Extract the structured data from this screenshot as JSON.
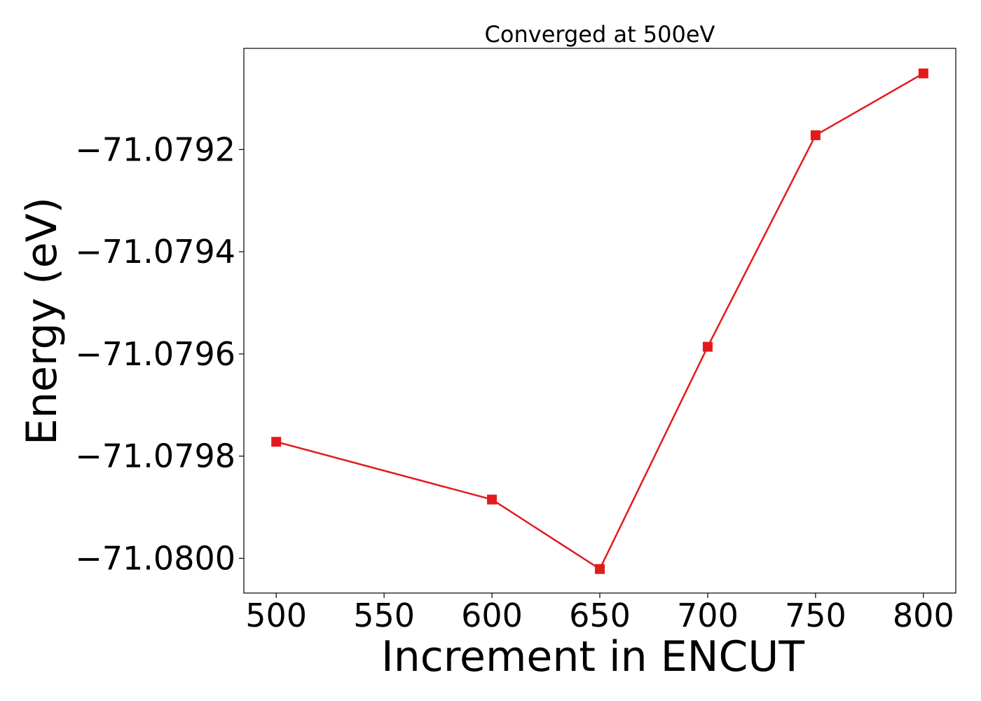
{
  "chart_data": {
    "type": "line",
    "title": "Converged at 500eV",
    "xlabel": "Increment in ENCUT",
    "ylabel": "Energy (eV)",
    "x": [
      500,
      600,
      650,
      700,
      750,
      800
    ],
    "series": [
      {
        "values": [
          -71.079772,
          -71.079885,
          -71.080021,
          -71.079586,
          -71.079172,
          -71.079051
        ],
        "color": "#e31a1c",
        "marker": "square"
      }
    ],
    "xlim": [
      485,
      815
    ],
    "ylim": [
      -71.080068,
      -71.079002
    ],
    "xticks": [
      500,
      550,
      600,
      650,
      700,
      750,
      800
    ],
    "xtick_labels": [
      "500",
      "550",
      "600",
      "650",
      "700",
      "750",
      "800"
    ],
    "yticks": [
      -71.08,
      -71.0798,
      -71.0796,
      -71.0794,
      -71.0792
    ],
    "ytick_labels": [
      "−71.0800",
      "−71.0798",
      "−71.0796",
      "−71.0794",
      "−71.0792"
    ],
    "grid": false,
    "legend": false
  }
}
